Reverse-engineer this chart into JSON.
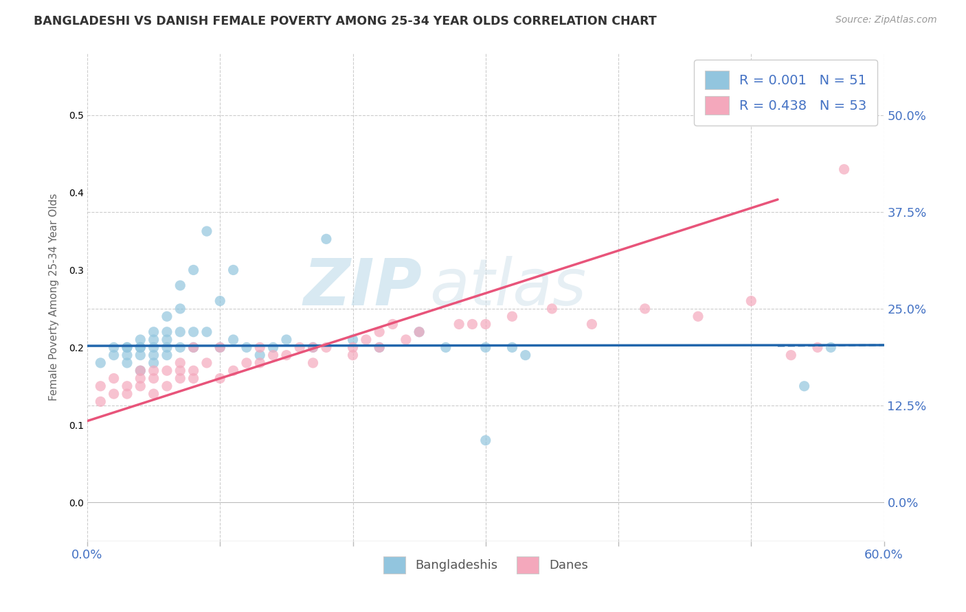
{
  "title": "BANGLADESHI VS DANISH FEMALE POVERTY AMONG 25-34 YEAR OLDS CORRELATION CHART",
  "source": "Source: ZipAtlas.com",
  "ylabel": "Female Poverty Among 25-34 Year Olds",
  "xlim": [
    0,
    0.6
  ],
  "ylim": [
    -0.05,
    0.58
  ],
  "xticks": [
    0.0,
    0.1,
    0.2,
    0.3,
    0.4,
    0.5,
    0.6
  ],
  "yticks": [
    0.0,
    0.125,
    0.25,
    0.375,
    0.5
  ],
  "right_ytick_labels": [
    "0.0%",
    "12.5%",
    "25.0%",
    "37.5%",
    "50.0%"
  ],
  "legend_r1": "R = 0.001",
  "legend_n1": "N = 51",
  "legend_r2": "R = 0.438",
  "legend_n2": "N = 53",
  "blue_color": "#92c5de",
  "pink_color": "#f4a8bc",
  "blue_line_color": "#2166ac",
  "pink_line_color": "#e8547a",
  "watermark_zip": "ZIP",
  "watermark_atlas": "atlas",
  "background_color": "#ffffff",
  "grid_color": "#cccccc",
  "bangladeshi_x": [
    0.01,
    0.02,
    0.02,
    0.03,
    0.03,
    0.03,
    0.03,
    0.04,
    0.04,
    0.04,
    0.04,
    0.04,
    0.05,
    0.05,
    0.05,
    0.05,
    0.05,
    0.06,
    0.06,
    0.06,
    0.06,
    0.06,
    0.07,
    0.07,
    0.07,
    0.07,
    0.08,
    0.08,
    0.08,
    0.09,
    0.09,
    0.1,
    0.1,
    0.11,
    0.11,
    0.12,
    0.13,
    0.14,
    0.15,
    0.17,
    0.18,
    0.2,
    0.22,
    0.25,
    0.27,
    0.3,
    0.3,
    0.32,
    0.33,
    0.54,
    0.56
  ],
  "bangladeshi_y": [
    0.18,
    0.19,
    0.2,
    0.18,
    0.19,
    0.2,
    0.2,
    0.17,
    0.19,
    0.2,
    0.2,
    0.21,
    0.18,
    0.19,
    0.2,
    0.21,
    0.22,
    0.19,
    0.2,
    0.21,
    0.22,
    0.24,
    0.2,
    0.22,
    0.25,
    0.28,
    0.2,
    0.22,
    0.3,
    0.22,
    0.35,
    0.2,
    0.26,
    0.21,
    0.3,
    0.2,
    0.19,
    0.2,
    0.21,
    0.2,
    0.34,
    0.21,
    0.2,
    0.22,
    0.2,
    0.08,
    0.2,
    0.2,
    0.19,
    0.15,
    0.2
  ],
  "danish_x": [
    0.01,
    0.01,
    0.02,
    0.02,
    0.03,
    0.03,
    0.04,
    0.04,
    0.04,
    0.05,
    0.05,
    0.05,
    0.06,
    0.06,
    0.07,
    0.07,
    0.07,
    0.08,
    0.08,
    0.08,
    0.09,
    0.1,
    0.1,
    0.11,
    0.12,
    0.13,
    0.13,
    0.14,
    0.15,
    0.16,
    0.17,
    0.17,
    0.18,
    0.2,
    0.2,
    0.21,
    0.22,
    0.22,
    0.23,
    0.24,
    0.25,
    0.28,
    0.29,
    0.3,
    0.32,
    0.35,
    0.38,
    0.42,
    0.46,
    0.5,
    0.53,
    0.55,
    0.57
  ],
  "danish_y": [
    0.13,
    0.15,
    0.14,
    0.16,
    0.14,
    0.15,
    0.15,
    0.16,
    0.17,
    0.14,
    0.16,
    0.17,
    0.15,
    0.17,
    0.16,
    0.17,
    0.18,
    0.16,
    0.17,
    0.2,
    0.18,
    0.16,
    0.2,
    0.17,
    0.18,
    0.18,
    0.2,
    0.19,
    0.19,
    0.2,
    0.18,
    0.2,
    0.2,
    0.19,
    0.2,
    0.21,
    0.2,
    0.22,
    0.23,
    0.21,
    0.22,
    0.23,
    0.23,
    0.23,
    0.24,
    0.25,
    0.23,
    0.25,
    0.24,
    0.26,
    0.19,
    0.2,
    0.43
  ],
  "blue_trendline_y0": 0.202,
  "blue_trendline_y1": 0.203,
  "pink_trendline_y0": 0.105,
  "pink_trendline_y1": 0.435
}
